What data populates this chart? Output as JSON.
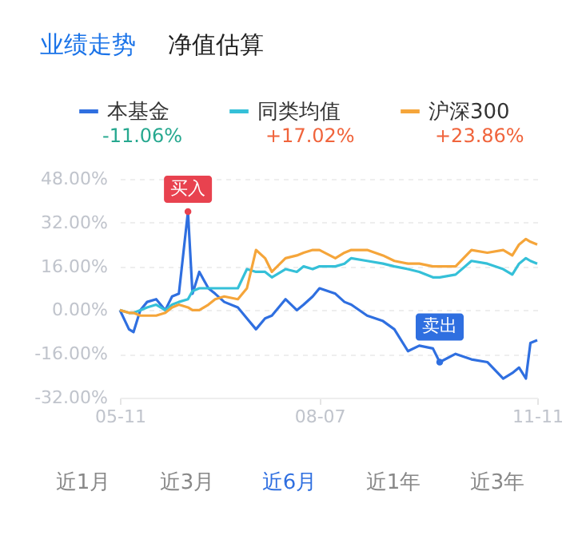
{
  "chart_data": {
    "type": "line",
    "x": [
      "--05-11",
      "--05-15",
      "--05-17",
      "--05-20",
      "--05-23",
      "--05-27",
      "--05-31",
      "--06-03",
      "--06-06",
      "--06-10",
      "--06-12",
      "--06-15",
      "--06-19",
      "--06-22",
      "--06-26",
      "--07-02",
      "--07-06",
      "--07-10",
      "--07-14",
      "--07-17",
      "--07-23",
      "--07-28",
      "--07-31",
      "--08-04",
      "--08-07",
      "--08-14",
      "--08-18",
      "--08-21",
      "--08-28",
      "--09-04",
      "--09-09",
      "--09-15",
      "--09-20",
      "--09-26",
      "--09-29",
      "--10-06",
      "--10-13",
      "--10-20",
      "--10-27",
      "--10-31",
      "--11-03",
      "--11-06",
      "--11-08",
      "--11-11"
    ],
    "series": [
      {
        "name": "本基金",
        "color": "#2f6fe0",
        "values": [
          0,
          -7,
          -8,
          0,
          3,
          4,
          0,
          5,
          6,
          36,
          6,
          14,
          8,
          6,
          3,
          1,
          -3,
          -7,
          -3,
          -2,
          4,
          0,
          2,
          5,
          8,
          6,
          3,
          2,
          -2,
          -4,
          -7,
          -15,
          -13,
          -14,
          -19,
          -16,
          -18,
          -19,
          -25,
          -23,
          -21,
          -25,
          -12,
          -11
        ]
      },
      {
        "name": "同类均值",
        "color": "#35c0d8",
        "values": [
          0,
          -1,
          -1,
          0,
          1,
          2,
          0,
          2,
          3,
          4,
          7,
          8,
          8,
          8,
          8,
          8,
          15,
          14,
          14,
          12,
          15,
          14,
          16,
          15,
          16,
          16,
          17,
          19,
          18,
          17,
          16,
          15,
          14,
          12,
          12,
          13,
          18,
          17,
          15,
          13,
          17,
          19,
          18,
          17
        ]
      },
      {
        "name": "沪深300",
        "color": "#f5a53a",
        "values": [
          0,
          -1,
          -1,
          -2,
          -2,
          -2,
          -1,
          1,
          2,
          1,
          0,
          0,
          2,
          4,
          5,
          4,
          8,
          22,
          19,
          14,
          19,
          20,
          21,
          22,
          22,
          19,
          21,
          22,
          22,
          20,
          18,
          17,
          17,
          16,
          16,
          16,
          22,
          21,
          22,
          20,
          24,
          26,
          25,
          24
        ]
      }
    ],
    "xlim": [
      "--05-11",
      "--11-11"
    ],
    "xticks": [
      {
        "value": "--05-11",
        "label": "05-11"
      },
      {
        "value": "--08-07",
        "label": "08-07"
      },
      {
        "value": "--11-11",
        "label": "11-11"
      }
    ],
    "ylim": [
      -32,
      48
    ],
    "yticks": [
      {
        "value": -32,
        "label": "-32.00%"
      },
      {
        "value": -16,
        "label": "-16.00%"
      },
      {
        "value": 0,
        "label": "0.00%"
      },
      {
        "value": 16,
        "label": "16.00%"
      },
      {
        "value": 32,
        "label": "32.00%"
      },
      {
        "value": 48,
        "label": "48.00%"
      }
    ],
    "grid": "y",
    "legend": "top",
    "marker": "none",
    "line_style": "solid",
    "annotations": [
      "业绩走势",
      "净值估算",
      "-11.06%",
      "+17.02%",
      "+23.86%",
      "近1月",
      "近3月",
      "近6月",
      "近1年",
      "近3年",
      {
        "text": "买入",
        "x": "--06-10",
        "y": 36
      },
      {
        "text": "卖出",
        "x": "--09-29",
        "y": -19
      }
    ]
  }
}
